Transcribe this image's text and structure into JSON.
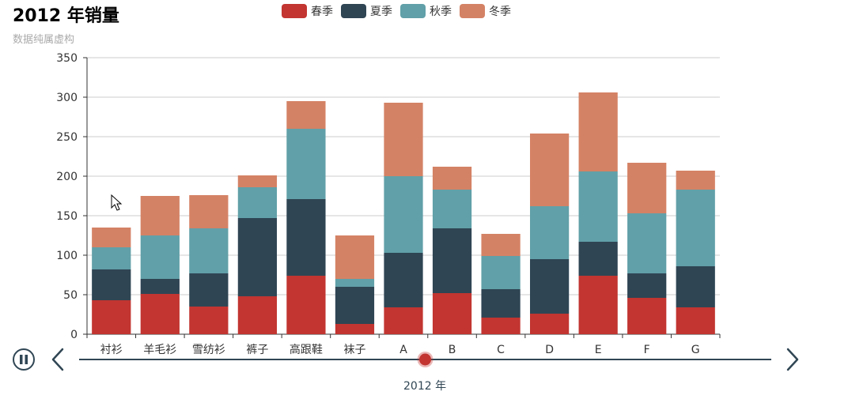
{
  "title": "2012 年销量",
  "subtitle": "数据纯属虚构",
  "colors": {
    "spring": "#c23531",
    "summer": "#2f4554",
    "autumn": "#61a0a8",
    "winter": "#d48265",
    "timeline": "#304654"
  },
  "timeline": {
    "current_label": "2012 年",
    "play_icon": "pause-icon",
    "prev_icon": "chevron-left-icon",
    "next_icon": "chevron-right-icon",
    "position_fraction": 0.5
  },
  "chart_data": {
    "type": "bar",
    "stacked": true,
    "categories": [
      "衬衫",
      "羊毛衫",
      "雪纺衫",
      "裤子",
      "高跟鞋",
      "袜子",
      "A",
      "B",
      "C",
      "D",
      "E",
      "F",
      "G"
    ],
    "series": [
      {
        "name": "春季",
        "color": "#c23531",
        "values": [
          43,
          51,
          35,
          48,
          74,
          13,
          34,
          52,
          21,
          26,
          74,
          46,
          34
        ]
      },
      {
        "name": "夏季",
        "color": "#2f4554",
        "values": [
          39,
          19,
          42,
          99,
          97,
          47,
          69,
          82,
          36,
          69,
          43,
          31,
          52
        ]
      },
      {
        "name": "秋季",
        "color": "#61a0a8",
        "values": [
          28,
          55,
          57,
          39,
          89,
          10,
          97,
          49,
          42,
          67,
          89,
          76,
          97
        ]
      },
      {
        "name": "冬季",
        "color": "#d48265",
        "values": [
          25,
          50,
          42,
          15,
          35,
          55,
          93,
          29,
          28,
          92,
          100,
          64,
          24
        ]
      }
    ],
    "ylim": [
      0,
      350
    ],
    "yticks": [
      0,
      50,
      100,
      150,
      200,
      250,
      300,
      350
    ],
    "grid": true,
    "legend_position": "top-center"
  }
}
